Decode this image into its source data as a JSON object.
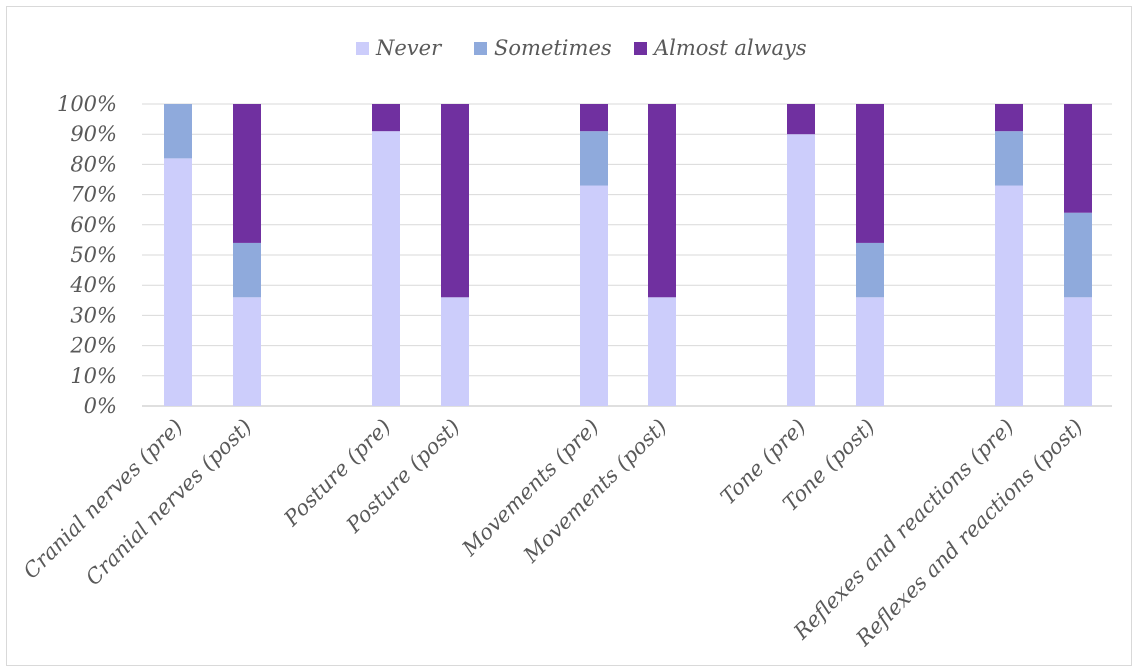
{
  "chart_data": {
    "type": "bar",
    "stacked": true,
    "categories": [
      "Cranial nerves (pre)",
      "Cranial nerves (post)",
      "Posture (pre)",
      "Posture (post)",
      "Movements (pre)",
      "Movements (post)",
      "Tone (pre)",
      "Tone (post)",
      "Reflexes and reactions (pre)",
      "Reflexes and reactions (post)"
    ],
    "series": [
      {
        "name": "Never",
        "color": "#cccdfb",
        "values": [
          82,
          36,
          91,
          36,
          73,
          36,
          90,
          36,
          73,
          36
        ]
      },
      {
        "name": "Sometimes",
        "color": "#8faadc",
        "values": [
          18,
          18,
          0,
          0,
          18,
          0,
          0,
          18,
          18,
          28
        ]
      },
      {
        "name": "Almost always",
        "color": "#7030a0",
        "values": [
          0,
          46,
          9,
          64,
          9,
          64,
          10,
          46,
          9,
          36
        ]
      }
    ],
    "yticks": [
      "0%",
      "10%",
      "20%",
      "30%",
      "40%",
      "50%",
      "60%",
      "70%",
      "80%",
      "90%",
      "100%"
    ],
    "ylim": [
      0,
      100
    ],
    "legend_position": "top",
    "grid": true
  }
}
